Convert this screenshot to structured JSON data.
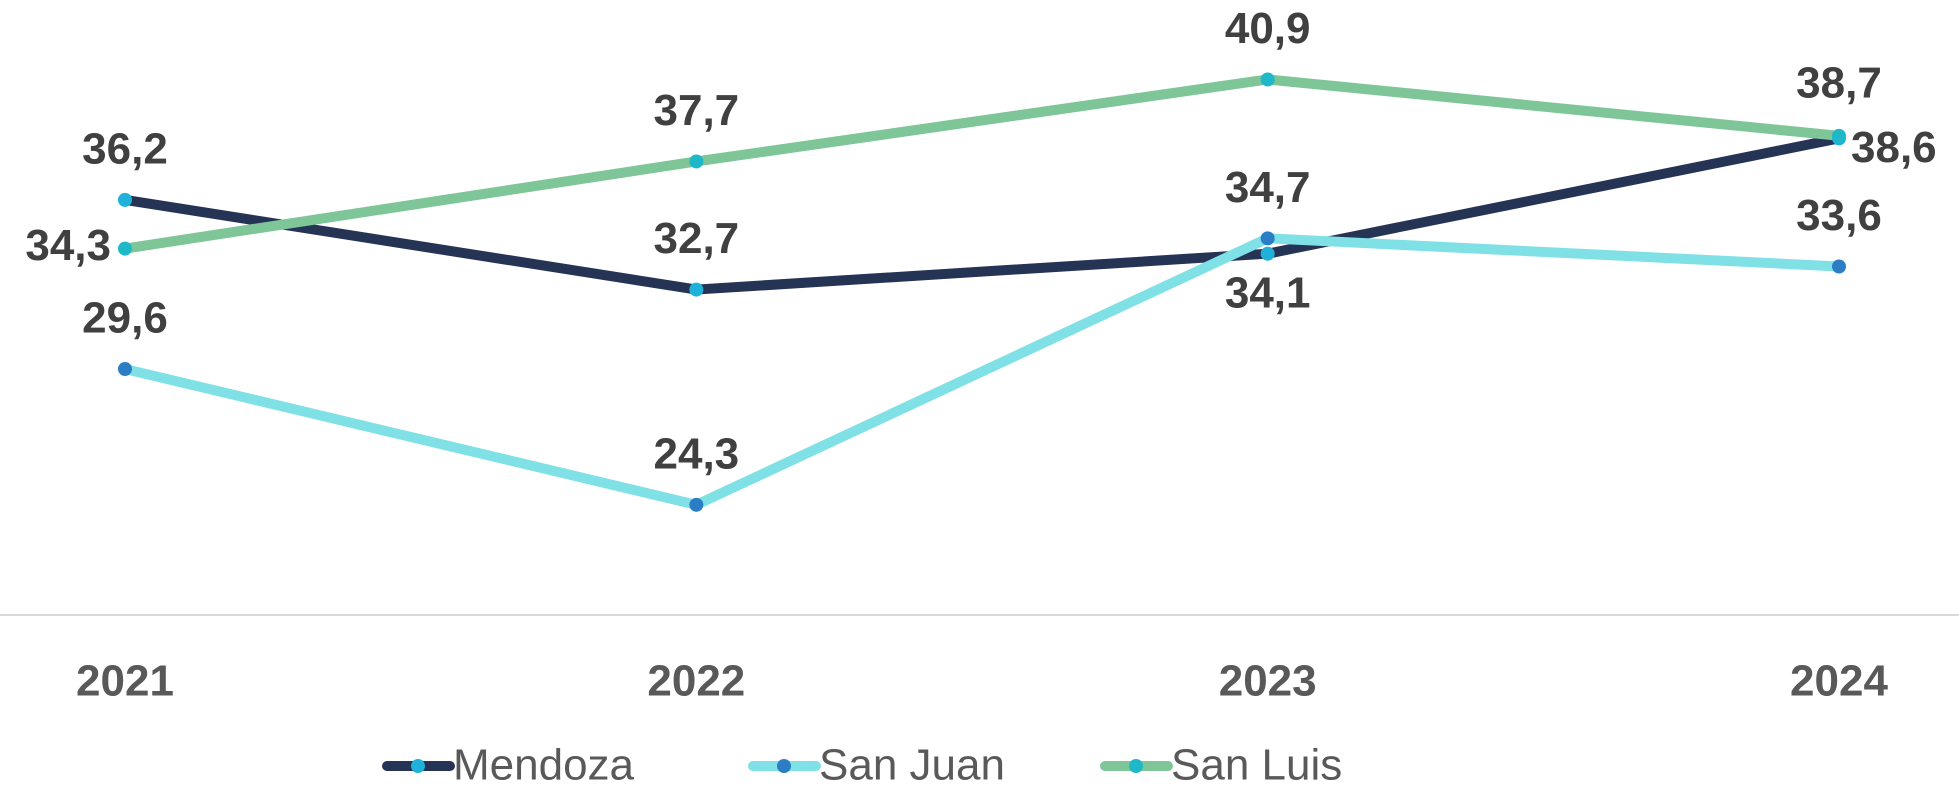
{
  "chart_data": {
    "type": "line",
    "categories": [
      "2021",
      "2022",
      "2023",
      "2024"
    ],
    "ylim": [
      20,
      44
    ],
    "series": [
      {
        "name": "Mendoza",
        "color": "#253355",
        "marker_color": "#1fb1d9",
        "values": [
          36.2,
          32.7,
          34.1,
          38.6
        ],
        "value_labels": [
          "36,2",
          "32,7",
          "34,1",
          "38,6"
        ]
      },
      {
        "name": "San Juan",
        "color": "#7fe0e6",
        "marker_color": "#2b7ec6",
        "values": [
          29.6,
          24.3,
          34.7,
          33.6
        ],
        "value_labels": [
          "29,6",
          "24,3",
          "34,7",
          "33,6"
        ]
      },
      {
        "name": "San Luis",
        "color": "#7ec598",
        "marker_color": "#1fb8c9",
        "values": [
          34.3,
          37.7,
          40.9,
          38.7
        ],
        "value_labels": [
          "34,3",
          "37,7",
          "40,9",
          "38,7"
        ]
      }
    ],
    "legend": "bottom"
  }
}
